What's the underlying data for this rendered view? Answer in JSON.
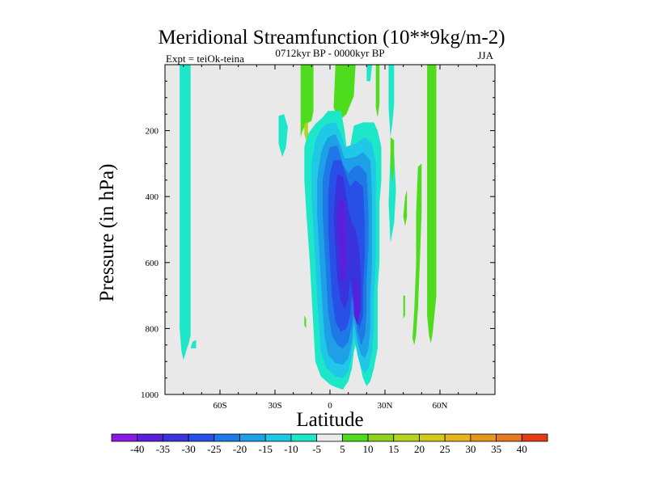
{
  "chart_data": {
    "type": "heatmap",
    "title": "Meridional Streamfunction (10**9kg/m-2)",
    "left_label": "Expt = teiOk-teina",
    "center_label": "0712kyr BP - 0000kyr BP",
    "right_label": "JJA",
    "xlabel": "Latitude",
    "ylabel": "Pressure (in hPa)",
    "xlim": [
      -90,
      90
    ],
    "ylim": [
      1000,
      0
    ],
    "x_ticks": [
      {
        "value": -60,
        "label": "60S"
      },
      {
        "value": -30,
        "label": "30S"
      },
      {
        "value": 0,
        "label": "0"
      },
      {
        "value": 30,
        "label": "30N"
      },
      {
        "value": 60,
        "label": "60N"
      }
    ],
    "y_ticks": [
      {
        "value": 200,
        "label": "200"
      },
      {
        "value": 400,
        "label": "400"
      },
      {
        "value": 600,
        "label": "600"
      },
      {
        "value": 800,
        "label": "800"
      },
      {
        "value": 1000,
        "label": "1000"
      }
    ],
    "colorbar": {
      "labels": [
        "-40",
        "-35",
        "-30",
        "-25",
        "-20",
        "-15",
        "-10",
        "-5",
        "5",
        "10",
        "15",
        "20",
        "25",
        "30",
        "35",
        "40"
      ],
      "colors": [
        "#8a1ae6",
        "#5a1edc",
        "#3a32dc",
        "#2850e6",
        "#1e78e6",
        "#1ea0e6",
        "#1ec8e6",
        "#1ee6c8",
        "#ebebeb",
        "#50dc1e",
        "#8cd21e",
        "#b4d21e",
        "#d2c81e",
        "#e6b41e",
        "#e6961e",
        "#e6781e",
        "#e63c14"
      ],
      "neutral_color": "#e9e9e9"
    },
    "regions": [
      {
        "color": "#1ee6c8",
        "points": [
          [
            -82,
            0
          ],
          [
            -76,
            0
          ],
          [
            -76,
            820
          ],
          [
            -77,
            845
          ],
          [
            -78,
            860
          ],
          [
            -79,
            880
          ],
          [
            -80,
            895
          ],
          [
            -81,
            870
          ],
          [
            -82,
            800
          ]
        ]
      },
      {
        "color": "#1ee6c8",
        "points": [
          [
            -76,
            860
          ],
          [
            -75,
            840
          ],
          [
            -73,
            835
          ],
          [
            -73,
            860
          ]
        ]
      },
      {
        "color": "#1ee6c8",
        "points": [
          [
            -28,
            155
          ],
          [
            -25,
            150
          ],
          [
            -23,
            190
          ],
          [
            -24,
            250
          ],
          [
            -26,
            280
          ],
          [
            -28,
            240
          ]
        ]
      },
      {
        "color": "#50dc1e",
        "points": [
          [
            -16,
            0
          ],
          [
            -9,
            0
          ],
          [
            -9,
            140
          ],
          [
            -10,
            170
          ],
          [
            -13,
            180
          ],
          [
            -15,
            200
          ],
          [
            -16,
            220
          ],
          [
            -16,
            120
          ]
        ]
      },
      {
        "color": "#50dc1e",
        "points": [
          [
            3,
            0
          ],
          [
            14,
            0
          ],
          [
            13,
            95
          ],
          [
            9,
            150
          ],
          [
            5,
            170
          ],
          [
            2,
            130
          ]
        ]
      },
      {
        "color": "#1ee6c8",
        "points": [
          [
            -1,
            140
          ],
          [
            6,
            140
          ],
          [
            8,
            200
          ],
          [
            9,
            250
          ],
          [
            11,
            250
          ],
          [
            13,
            185
          ],
          [
            18,
            175
          ],
          [
            24,
            175
          ],
          [
            26,
            200
          ],
          [
            28,
            250
          ],
          [
            28,
            350
          ],
          [
            27,
            420
          ],
          [
            27,
            500
          ],
          [
            27,
            600
          ],
          [
            26,
            680
          ],
          [
            26,
            780
          ],
          [
            26,
            860
          ],
          [
            24,
            920
          ],
          [
            22,
            960
          ],
          [
            20,
            975
          ],
          [
            18,
            950
          ],
          [
            16,
            900
          ],
          [
            14,
            850
          ],
          [
            13,
            870
          ],
          [
            12,
            920
          ],
          [
            10,
            960
          ],
          [
            7,
            985
          ],
          [
            4,
            980
          ],
          [
            0,
            970
          ],
          [
            -5,
            945
          ],
          [
            -8,
            900
          ],
          [
            -9,
            800
          ],
          [
            -10,
            700
          ],
          [
            -11,
            600
          ],
          [
            -12,
            520
          ],
          [
            -13,
            440
          ],
          [
            -14,
            350
          ],
          [
            -14,
            250
          ],
          [
            -12,
            210
          ],
          [
            -8,
            180
          ],
          [
            -4,
            160
          ]
        ]
      },
      {
        "color": "#1ec8e6",
        "points": [
          [
            -2,
            180
          ],
          [
            3,
            175
          ],
          [
            6,
            210
          ],
          [
            8,
            250
          ],
          [
            14,
            240
          ],
          [
            19,
            220
          ],
          [
            23,
            240
          ],
          [
            25,
            300
          ],
          [
            25,
            400
          ],
          [
            25,
            500
          ],
          [
            25,
            600
          ],
          [
            24,
            700
          ],
          [
            24,
            800
          ],
          [
            23,
            870
          ],
          [
            21,
            920
          ],
          [
            19,
            935
          ],
          [
            17,
            920
          ],
          [
            15,
            880
          ],
          [
            13,
            820
          ],
          [
            12,
            880
          ],
          [
            10,
            930
          ],
          [
            7,
            950
          ],
          [
            3,
            945
          ],
          [
            -2,
            920
          ],
          [
            -5,
            870
          ],
          [
            -6,
            790
          ],
          [
            -7,
            700
          ],
          [
            -8,
            600
          ],
          [
            -9,
            500
          ],
          [
            -10,
            400
          ],
          [
            -10,
            300
          ],
          [
            -8,
            230
          ],
          [
            -5,
            195
          ]
        ]
      },
      {
        "color": "#1ea0e6",
        "points": [
          [
            -1,
            220
          ],
          [
            3,
            210
          ],
          [
            6,
            250
          ],
          [
            8,
            285
          ],
          [
            14,
            280
          ],
          [
            18,
            265
          ],
          [
            22,
            290
          ],
          [
            23,
            400
          ],
          [
            23,
            500
          ],
          [
            23,
            600
          ],
          [
            22,
            700
          ],
          [
            22,
            800
          ],
          [
            21,
            860
          ],
          [
            19,
            890
          ],
          [
            17,
            880
          ],
          [
            15,
            840
          ],
          [
            13,
            780
          ],
          [
            12,
            840
          ],
          [
            10,
            890
          ],
          [
            7,
            910
          ],
          [
            3,
            905
          ],
          [
            -1,
            880
          ],
          [
            -3,
            820
          ],
          [
            -4,
            740
          ],
          [
            -5,
            650
          ],
          [
            -6,
            550
          ],
          [
            -7,
            450
          ],
          [
            -7,
            350
          ],
          [
            -5,
            270
          ],
          [
            -3,
            240
          ]
        ]
      },
      {
        "color": "#1e78e6",
        "points": [
          [
            0,
            250
          ],
          [
            4,
            245
          ],
          [
            7,
            300
          ],
          [
            10,
            330
          ],
          [
            13,
            310
          ],
          [
            16,
            305
          ],
          [
            20,
            330
          ],
          [
            21,
            450
          ],
          [
            21,
            550
          ],
          [
            20,
            650
          ],
          [
            20,
            750
          ],
          [
            19,
            820
          ],
          [
            17,
            850
          ],
          [
            15,
            810
          ],
          [
            13,
            740
          ],
          [
            12,
            790
          ],
          [
            10,
            840
          ],
          [
            7,
            860
          ],
          [
            4,
            850
          ],
          [
            1,
            820
          ],
          [
            -1,
            750
          ],
          [
            -2,
            650
          ],
          [
            -3,
            550
          ],
          [
            -4,
            450
          ],
          [
            -4,
            350
          ],
          [
            -2,
            290
          ]
        ]
      },
      {
        "color": "#2850e6",
        "points": [
          [
            2,
            290
          ],
          [
            6,
            290
          ],
          [
            9,
            340
          ],
          [
            11,
            370
          ],
          [
            14,
            350
          ],
          [
            18,
            370
          ],
          [
            19,
            480
          ],
          [
            19,
            580
          ],
          [
            18,
            680
          ],
          [
            18,
            760
          ],
          [
            16,
            800
          ],
          [
            14,
            760
          ],
          [
            12,
            700
          ],
          [
            11,
            760
          ],
          [
            9,
            800
          ],
          [
            6,
            810
          ],
          [
            3,
            780
          ],
          [
            1,
            700
          ],
          [
            0,
            600
          ],
          [
            -1,
            500
          ],
          [
            -1,
            400
          ],
          [
            0,
            330
          ]
        ]
      },
      {
        "color": "#3a32dc",
        "points": [
          [
            4,
            330
          ],
          [
            7,
            340
          ],
          [
            9,
            400
          ],
          [
            10,
            440
          ],
          [
            12,
            480
          ],
          [
            14,
            500
          ],
          [
            16,
            560
          ],
          [
            17,
            660
          ],
          [
            17,
            740
          ],
          [
            15,
            780
          ],
          [
            13,
            720
          ],
          [
            11,
            650
          ],
          [
            10,
            710
          ],
          [
            8,
            740
          ],
          [
            6,
            720
          ],
          [
            4,
            650
          ],
          [
            3,
            560
          ],
          [
            2,
            460
          ],
          [
            3,
            380
          ]
        ]
      },
      {
        "color": "#5a1edc",
        "points": [
          [
            5,
            400
          ],
          [
            8,
            420
          ],
          [
            9,
            520
          ],
          [
            9,
            600
          ],
          [
            8,
            660
          ],
          [
            6,
            650
          ],
          [
            5,
            560
          ],
          [
            4,
            470
          ]
        ]
      },
      {
        "color": "#5a1edc",
        "points": [
          [
            14,
            640
          ],
          [
            16,
            700
          ],
          [
            16,
            760
          ],
          [
            15,
            790
          ],
          [
            13,
            760
          ],
          [
            13,
            690
          ]
        ]
      },
      {
        "color": "#1ee6c8",
        "points": [
          [
            20,
            0
          ],
          [
            23,
            0
          ],
          [
            22,
            50
          ],
          [
            20,
            50
          ]
        ]
      },
      {
        "color": "#1ee6c8",
        "points": [
          [
            32,
            0
          ],
          [
            35,
            0
          ],
          [
            35,
            120
          ],
          [
            34,
            180
          ],
          [
            33,
            220
          ],
          [
            32,
            130
          ]
        ]
      },
      {
        "color": "#1ee6c8",
        "points": [
          [
            33,
            270
          ],
          [
            35,
            270
          ],
          [
            36,
            380
          ],
          [
            35,
            480
          ],
          [
            33,
            540
          ],
          [
            32,
            420
          ]
        ]
      },
      {
        "color": "#50dc1e",
        "points": [
          [
            25,
            0
          ],
          [
            27,
            0
          ],
          [
            27,
            120
          ],
          [
            26,
            160
          ],
          [
            25,
            130
          ]
        ]
      },
      {
        "color": "#50dc1e",
        "points": [
          [
            33,
            220
          ],
          [
            35,
            230
          ],
          [
            35,
            310
          ],
          [
            34,
            360
          ],
          [
            33,
            300
          ]
        ]
      },
      {
        "color": "#50dc1e",
        "points": [
          [
            41,
            400
          ],
          [
            42,
            380
          ],
          [
            42,
            460
          ],
          [
            41,
            490
          ],
          [
            40,
            460
          ]
        ]
      },
      {
        "color": "#50dc1e",
        "points": [
          [
            53,
            0
          ],
          [
            58,
            0
          ],
          [
            58,
            700
          ],
          [
            57,
            760
          ],
          [
            56,
            815
          ],
          [
            55,
            845
          ],
          [
            54,
            820
          ],
          [
            53,
            760
          ],
          [
            53,
            500
          ]
        ]
      },
      {
        "color": "#50dc1e",
        "points": [
          [
            48,
            310
          ],
          [
            50,
            300
          ],
          [
            50,
            450
          ],
          [
            49,
            600
          ],
          [
            48,
            740
          ],
          [
            47,
            820
          ],
          [
            46,
            850
          ],
          [
            45,
            830
          ],
          [
            46,
            740
          ],
          [
            47,
            600
          ],
          [
            47,
            450
          ]
        ]
      },
      {
        "color": "#50dc1e",
        "points": [
          [
            -14,
            760
          ],
          [
            -13,
            770
          ],
          [
            -13,
            800
          ],
          [
            -14,
            790
          ]
        ]
      },
      {
        "color": "#50dc1e",
        "points": [
          [
            40,
            700
          ],
          [
            41,
            700
          ],
          [
            41,
            760
          ],
          [
            40,
            770
          ]
        ]
      },
      {
        "color": "#b4d21e",
        "points": [
          [
            -14,
            180
          ],
          [
            -12,
            175
          ],
          [
            -12,
            210
          ],
          [
            -13,
            230
          ],
          [
            -14,
            210
          ]
        ]
      }
    ]
  }
}
